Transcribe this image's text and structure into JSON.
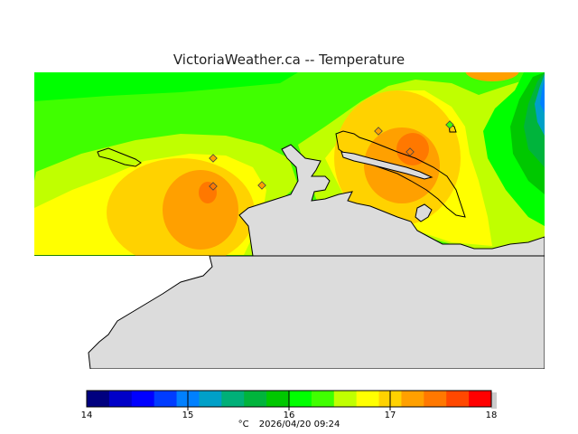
{
  "title": "VictoriaWeather.ca  --  Temperature",
  "legend": {
    "unit": "°C",
    "timestamp": "2026/04/20 09:24",
    "ticks": [
      "14",
      "15",
      "16",
      "17",
      "18"
    ],
    "min": 14,
    "max": 18,
    "colors": [
      "#00007f",
      "#0000c8",
      "#0000ff",
      "#003cff",
      "#0080ff",
      "#00a0c8",
      "#00b078",
      "#00b43c",
      "#00c800",
      "#00ff00",
      "#40ff00",
      "#c0ff00",
      "#ffff00",
      "#ffd200",
      "#ffa000",
      "#ff7800",
      "#ff4800",
      "#ff0000"
    ]
  },
  "stations": [
    {
      "id": "s1",
      "value_band": "17.0-17.25"
    },
    {
      "id": "s2",
      "value_band": "17.25-17.5"
    },
    {
      "id": "s3",
      "value_band": "17.0-17.25"
    },
    {
      "id": "s4",
      "value_band": "17.0-17.25"
    },
    {
      "id": "s5",
      "value_band": "17.25-17.5"
    },
    {
      "id": "s6",
      "value_band": "16.25-16.5"
    }
  ],
  "colors": {
    "land": "#dcdcdc",
    "coast": "#000000",
    "band_16_0": "#00ff00",
    "band_16_25": "#40ff00",
    "band_16_5": "#c0ff00",
    "band_16_75": "#ffff00",
    "band_17_0": "#ffd200",
    "band_17_25": "#ffa000",
    "band_17_5": "#ff7800",
    "band_15_75": "#00c800",
    "band_15_5": "#00b43c",
    "band_15_25": "#00a0c8",
    "band_15_0": "#0080ff"
  }
}
